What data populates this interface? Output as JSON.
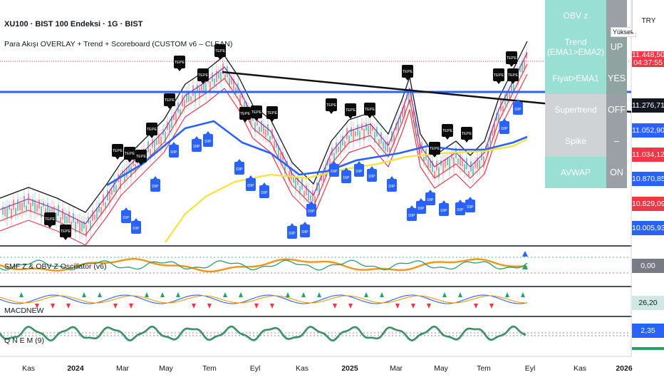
{
  "header": {
    "title": "XU100 · BIST 100 Endeksi · 1G · BIST",
    "indicator": "Para Akışı OVERLAY + Trend + Scoreboard (CUSTOM v6 – CLEAN)"
  },
  "markers": {
    "peak_label": "TEPE",
    "dip_label": "DIP"
  },
  "panes": {
    "smf": {
      "label": "SMF Z & OBV Z Oscillator (v6)",
      "value": "0,00"
    },
    "macd": {
      "label": "MACDNEW",
      "value": "26,20"
    },
    "osc3": {
      "label": "Q N E M (9)",
      "value": "2,35"
    }
  },
  "price_axis": {
    "currency": "TRY",
    "tags": [
      {
        "text": "11.448,50",
        "sub": "04:37:55",
        "color": "#f23645"
      },
      {
        "text": "11.276,71",
        "color": "#131722"
      },
      {
        "text": "11.052,90",
        "color": "#2962ff"
      },
      {
        "text": "11.034,12",
        "color": "#f23645"
      },
      {
        "text": "10.870,85",
        "color": "#2962ff"
      },
      {
        "text": "10.829,09",
        "color": "#f23645"
      },
      {
        "text": "10.005,93",
        "color": "#2962ff"
      }
    ]
  },
  "scoreboard": {
    "tooltip": "Yüksek",
    "rows": [
      {
        "label": "OBV z",
        "value": "",
        "label_bg": "#99dfd3",
        "value_bg": "#9aa0a6"
      },
      {
        "label": "Trend (EMA1>EMA2)",
        "value": "UP",
        "label_bg": "#99dfd3",
        "value_bg": "#8fa3a0"
      },
      {
        "label": "Fiyat>EMA1",
        "value": "YES",
        "label_bg": "#99dfd3",
        "value_bg": "#8fa3a0"
      },
      {
        "label": "Supertrend",
        "value": "OFF",
        "label_bg": "#cfd3d6",
        "value_bg": "#9aa0a6"
      },
      {
        "label": "Spike",
        "value": "–",
        "label_bg": "#cfd3d6",
        "value_bg": "#9aa0a6"
      },
      {
        "label": "AVWAP",
        "value": "ON",
        "label_bg": "#99dfd3",
        "value_bg": "#9aa0a6"
      }
    ]
  },
  "time_axis": {
    "labels": [
      {
        "text": "Kas",
        "bold": false
      },
      {
        "text": "2024",
        "bold": true
      },
      {
        "text": "Mar",
        "bold": false
      },
      {
        "text": "May",
        "bold": false
      },
      {
        "text": "Tem",
        "bold": false
      },
      {
        "text": "Eyl",
        "bold": false
      },
      {
        "text": "Kas",
        "bold": false
      },
      {
        "text": "2025",
        "bold": true
      },
      {
        "text": "Mar",
        "bold": false
      },
      {
        "text": "May",
        "bold": false
      },
      {
        "text": "Tem",
        "bold": false
      },
      {
        "text": "Eyl",
        "bold": false
      },
      {
        "text": "Kas",
        "bold": false
      },
      {
        "text": "2026",
        "bold": true
      }
    ]
  },
  "colors": {
    "ema_black": "#131722",
    "ema_purple": "#9c27b0",
    "ema_red": "#e53950",
    "ema_blue": "#2962ff",
    "ema_yellow": "#f5e33b",
    "trend_line": "#111111",
    "h_line": "#2962ff",
    "obv_green": "#26a269",
    "smf_orange": "#f29418"
  }
}
